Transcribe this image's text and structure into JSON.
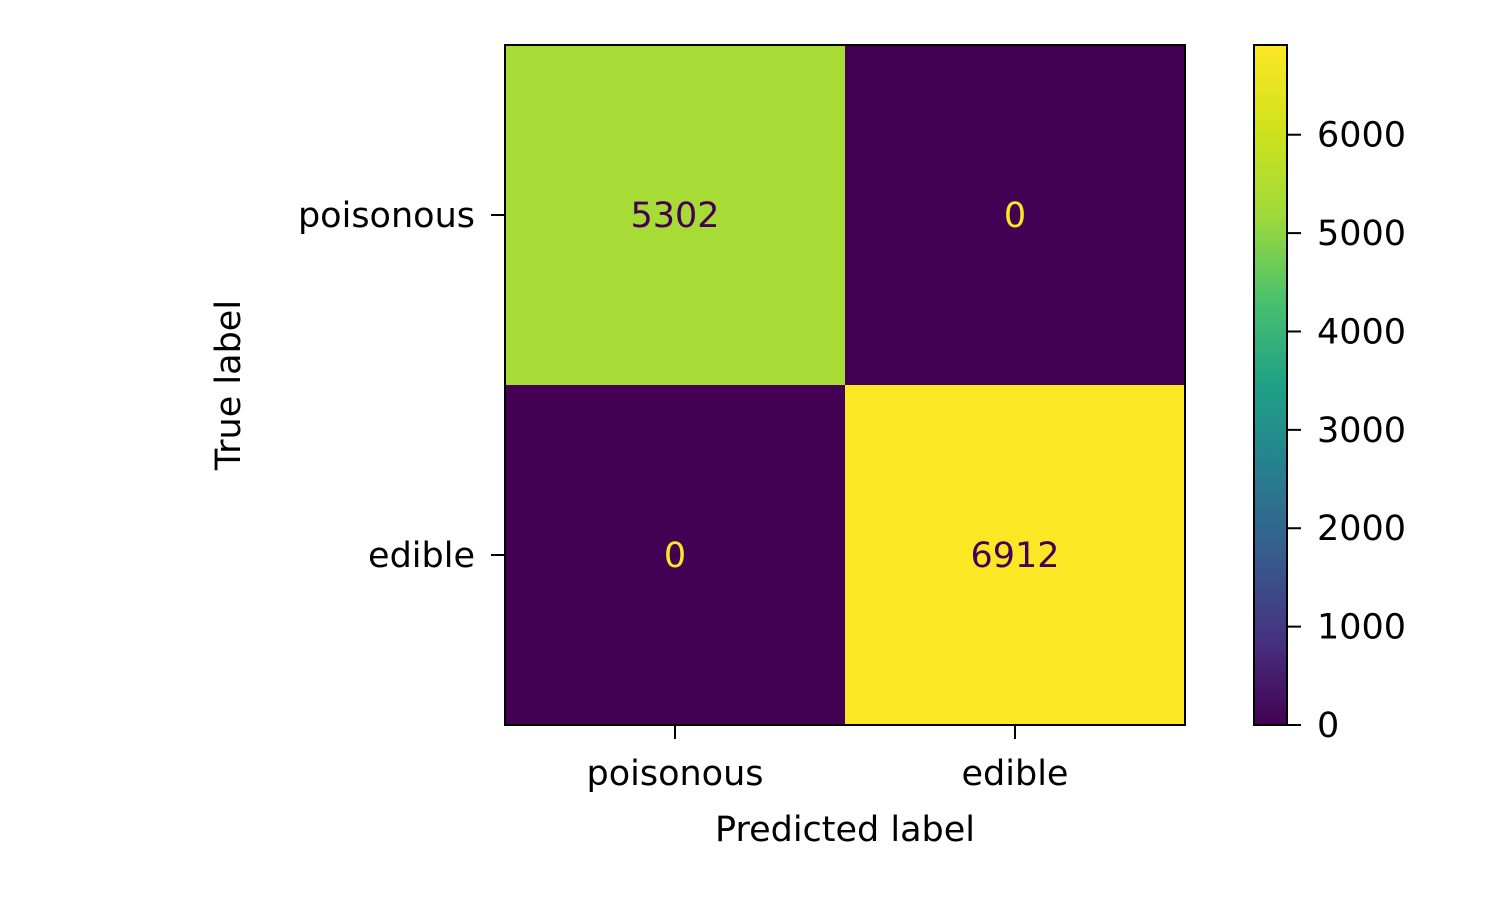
{
  "chart_data": {
    "type": "heatmap",
    "title": "",
    "xlabel": "Predicted label",
    "ylabel": "True label",
    "x_categories": [
      "poisonous",
      "edible"
    ],
    "y_categories": [
      "poisonous",
      "edible"
    ],
    "values": [
      [
        5302,
        0
      ],
      [
        0,
        6912
      ]
    ],
    "value_labels": [
      [
        "5302",
        "0"
      ],
      [
        "0",
        "6912"
      ]
    ],
    "colormap": "viridis",
    "color_range": [
      0,
      6912
    ],
    "colorbar": {
      "ticks": [
        0,
        1000,
        2000,
        3000,
        4000,
        5000,
        6000
      ],
      "tick_labels": [
        "0",
        "1000",
        "2000",
        "3000",
        "4000",
        "5000",
        "6000"
      ]
    },
    "text_colors": {
      "on_dark": "#fde725",
      "on_light": "#440154"
    }
  }
}
